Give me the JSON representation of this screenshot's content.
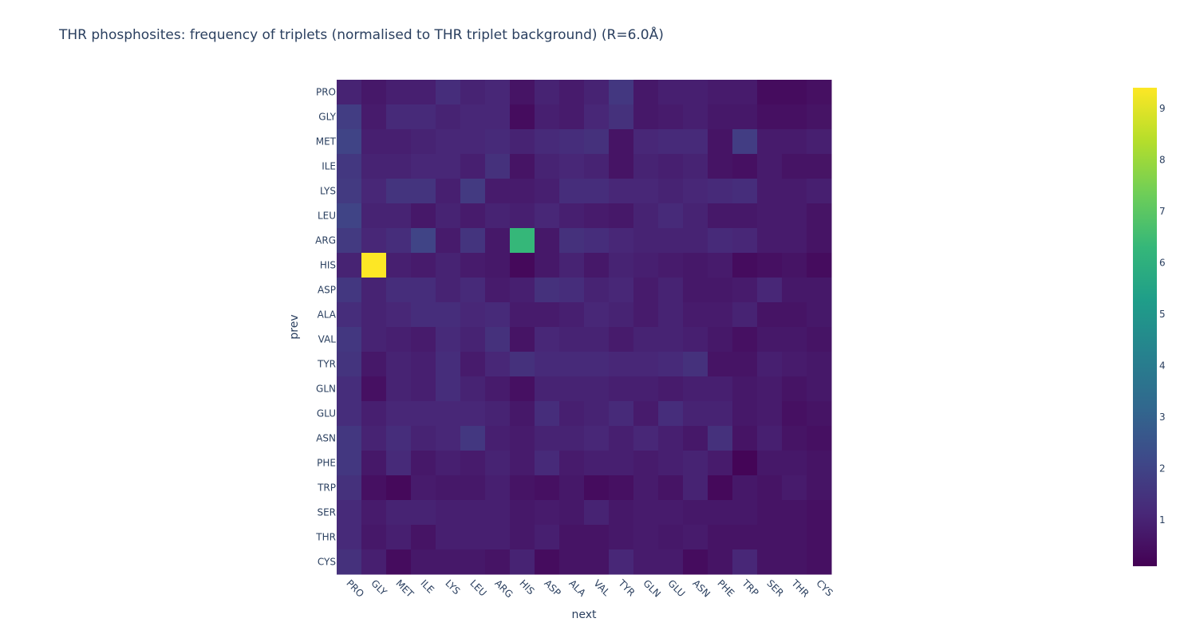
{
  "chart_data": {
    "type": "heatmap",
    "title": "THR phosphosites: frequency of triplets (normalised to THR triplet background) (R=6.0Å)",
    "xlabel": "next",
    "ylabel": "prev",
    "x_categories": [
      "PRO",
      "GLY",
      "MET",
      "ILE",
      "LYS",
      "LEU",
      "ARG",
      "HIS",
      "ASP",
      "ALA",
      "VAL",
      "TYR",
      "GLN",
      "GLU",
      "ASN",
      "PHE",
      "TRP",
      "SER",
      "THR",
      "CYS"
    ],
    "y_categories": [
      "PRO",
      "GLY",
      "MET",
      "ILE",
      "LYS",
      "LEU",
      "ARG",
      "HIS",
      "ASP",
      "ALA",
      "VAL",
      "TYR",
      "GLN",
      "GLU",
      "ASN",
      "PHE",
      "TRP",
      "SER",
      "THR",
      "CYS"
    ],
    "colorscale": "Viridis",
    "zmin": 0.1,
    "zmax": 9.4,
    "colorbar_ticks": [
      1,
      2,
      3,
      4,
      5,
      6,
      7,
      8,
      9
    ],
    "z": [
      [
        1.0,
        0.7,
        0.9,
        0.9,
        1.3,
        1.0,
        1.1,
        0.6,
        1.0,
        0.8,
        1.0,
        1.6,
        0.7,
        0.9,
        0.9,
        0.8,
        0.8,
        0.4,
        0.4,
        0.5
      ],
      [
        1.8,
        0.8,
        1.2,
        1.2,
        1.0,
        1.1,
        1.1,
        0.4,
        0.9,
        0.8,
        1.1,
        1.4,
        0.7,
        0.8,
        0.9,
        0.7,
        0.7,
        0.5,
        0.5,
        0.6
      ],
      [
        2.0,
        0.9,
        0.9,
        1.0,
        1.1,
        1.1,
        1.2,
        1.0,
        1.2,
        1.3,
        1.4,
        0.6,
        1.1,
        1.2,
        1.2,
        0.6,
        1.8,
        0.8,
        0.8,
        0.9
      ],
      [
        1.6,
        1.0,
        1.0,
        1.1,
        1.1,
        0.9,
        1.4,
        0.6,
        1.0,
        1.1,
        1.0,
        0.6,
        1.0,
        0.9,
        1.0,
        0.6,
        0.5,
        0.8,
        0.6,
        0.6
      ],
      [
        1.7,
        1.1,
        1.5,
        1.5,
        0.9,
        1.7,
        0.8,
        0.8,
        0.9,
        1.3,
        1.3,
        1.1,
        1.1,
        1.0,
        1.1,
        1.2,
        1.3,
        0.8,
        0.8,
        0.9
      ],
      [
        2.0,
        1.0,
        1.0,
        0.7,
        1.0,
        0.8,
        1.0,
        0.9,
        1.1,
        0.9,
        0.8,
        0.7,
        1.0,
        1.2,
        1.0,
        0.7,
        0.7,
        0.8,
        0.8,
        0.6
      ],
      [
        1.7,
        1.1,
        1.3,
        2.0,
        0.8,
        1.5,
        0.7,
        6.3,
        0.7,
        1.4,
        1.3,
        1.1,
        1.0,
        1.0,
        1.0,
        1.2,
        1.1,
        0.8,
        0.8,
        0.6
      ],
      [
        1.0,
        9.4,
        0.9,
        0.8,
        1.0,
        0.8,
        0.7,
        0.3,
        0.7,
        1.0,
        0.7,
        1.0,
        0.9,
        0.8,
        0.7,
        0.8,
        0.4,
        0.5,
        0.6,
        0.4
      ],
      [
        1.6,
        1.0,
        1.3,
        1.3,
        1.0,
        1.2,
        0.8,
        0.9,
        1.4,
        1.3,
        1.0,
        1.1,
        0.8,
        1.0,
        0.7,
        0.7,
        0.8,
        1.1,
        0.7,
        0.7
      ],
      [
        1.3,
        1.0,
        1.1,
        1.3,
        1.3,
        1.1,
        1.2,
        0.8,
        0.8,
        0.9,
        1.1,
        1.0,
        0.8,
        1.0,
        0.8,
        0.8,
        1.0,
        0.6,
        0.6,
        0.7
      ],
      [
        1.6,
        1.0,
        0.9,
        0.8,
        1.2,
        1.0,
        1.4,
        0.6,
        1.1,
        1.0,
        1.0,
        0.8,
        1.0,
        1.0,
        0.9,
        0.7,
        0.5,
        0.7,
        0.7,
        0.6
      ],
      [
        1.5,
        0.7,
        1.0,
        0.9,
        1.3,
        0.8,
        1.1,
        1.4,
        1.2,
        1.2,
        1.2,
        1.1,
        1.1,
        1.2,
        1.4,
        0.6,
        0.6,
        0.9,
        0.8,
        0.7
      ],
      [
        1.3,
        0.5,
        1.0,
        0.9,
        1.3,
        1.0,
        0.8,
        0.5,
        1.0,
        1.0,
        1.0,
        0.9,
        0.9,
        0.8,
        0.9,
        0.9,
        0.7,
        0.8,
        0.6,
        0.7
      ],
      [
        1.3,
        0.9,
        1.1,
        1.1,
        1.1,
        1.1,
        1.0,
        0.7,
        1.3,
        0.9,
        1.0,
        1.2,
        0.8,
        1.3,
        1.0,
        1.0,
        0.7,
        0.8,
        0.5,
        0.6
      ],
      [
        1.6,
        1.0,
        1.3,
        1.0,
        1.1,
        1.6,
        0.9,
        0.8,
        1.0,
        1.0,
        1.1,
        0.9,
        1.1,
        0.9,
        0.7,
        1.4,
        0.6,
        0.9,
        0.6,
        0.5
      ],
      [
        1.6,
        0.7,
        1.2,
        0.7,
        0.9,
        0.8,
        1.0,
        0.8,
        1.2,
        0.8,
        0.9,
        0.9,
        0.8,
        0.9,
        1.0,
        0.8,
        0.2,
        0.7,
        0.7,
        0.6
      ],
      [
        1.4,
        0.5,
        0.3,
        0.8,
        0.7,
        0.7,
        0.9,
        0.6,
        0.5,
        0.7,
        0.4,
        0.5,
        0.8,
        0.6,
        1.0,
        0.3,
        0.7,
        0.6,
        0.8,
        0.6
      ],
      [
        1.2,
        0.8,
        1.0,
        1.0,
        0.9,
        0.9,
        0.9,
        0.7,
        0.8,
        0.7,
        1.0,
        0.7,
        0.8,
        0.8,
        0.7,
        0.7,
        0.7,
        0.6,
        0.6,
        0.5
      ],
      [
        1.2,
        0.7,
        0.9,
        0.6,
        0.9,
        0.9,
        0.9,
        0.7,
        0.9,
        0.6,
        0.6,
        0.7,
        0.8,
        0.7,
        0.8,
        0.6,
        0.6,
        0.6,
        0.6,
        0.5
      ],
      [
        1.4,
        0.9,
        0.4,
        0.7,
        0.7,
        0.7,
        0.6,
        1.0,
        0.4,
        0.6,
        0.6,
        1.1,
        0.8,
        0.8,
        0.4,
        0.6,
        1.1,
        0.6,
        0.6,
        0.5
      ]
    ]
  }
}
